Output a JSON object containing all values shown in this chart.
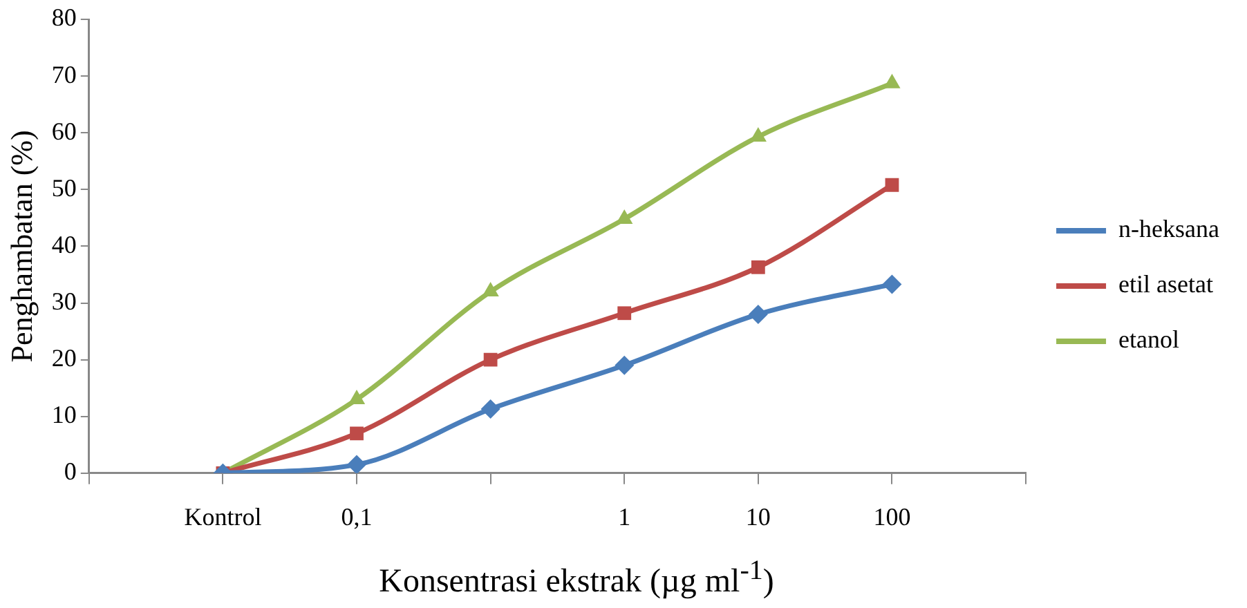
{
  "chart_data": {
    "type": "line",
    "xlabel": "Konsentrasi ekstrak (µg ml$^{-1}$)",
    "ylabel": "Penghambatan (%)",
    "categories": [
      null,
      "Kontrol",
      "0,1",
      null,
      "1",
      "10",
      "100",
      null
    ],
    "ylim": [
      0,
      80
    ],
    "yticks": [
      0,
      10,
      20,
      30,
      40,
      50,
      60,
      70,
      80
    ],
    "grid": false,
    "legend": "right",
    "line_style": "solid",
    "series": [
      {
        "name": "n-heksana",
        "color": "#4a7ebb",
        "marker": "diamond",
        "values": [
          null,
          0,
          1.5,
          11.3,
          19,
          28,
          33.3,
          null
        ]
      },
      {
        "name": "etil asetat",
        "color": "#be4b48",
        "marker": "square",
        "values": [
          null,
          0,
          7,
          20,
          28.2,
          36.3,
          50.8,
          null
        ]
      },
      {
        "name": "etanol",
        "color": "#98b954",
        "marker": "triangle",
        "values": [
          null,
          0,
          13,
          32,
          44.8,
          59.3,
          68.7,
          null
        ]
      }
    ]
  }
}
